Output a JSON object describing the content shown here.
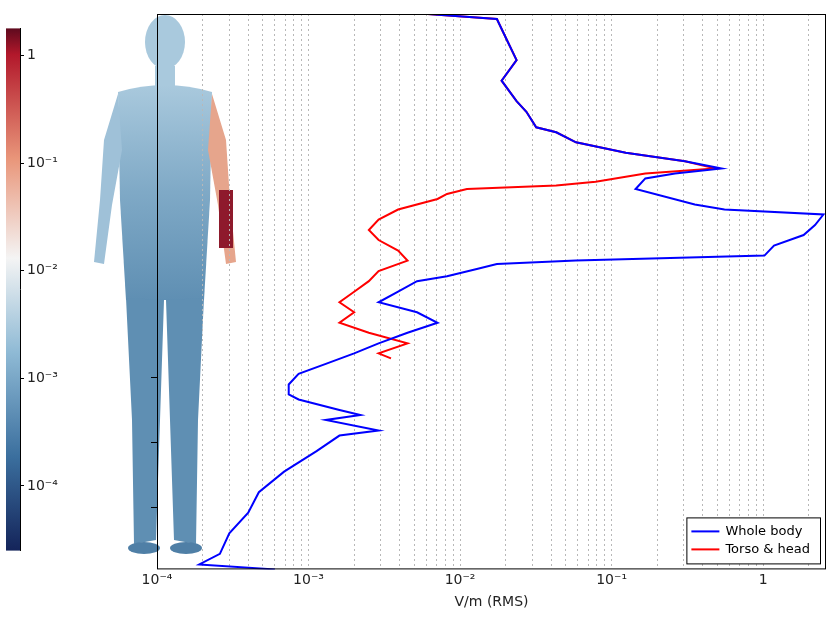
{
  "chart_data": {
    "type": "line",
    "x_label": "V/m (RMS)",
    "log": "x",
    "grid": true,
    "legend": "lower right",
    "tick_labels": "x",
    "xlim": [
      0.0001,
      2.6
    ],
    "xticks": [
      {
        "value": 0.0001,
        "label": "10⁻⁴"
      },
      {
        "value": 0.001,
        "label": "10⁻³"
      },
      {
        "value": 0.01,
        "label": "10⁻²"
      },
      {
        "value": 0.1,
        "label": "10⁻¹"
      },
      1
    ],
    "ylim": [
      0,
      1
    ],
    "yticks": [
      0.111,
      0.228,
      0.346
    ],
    "series": [
      {
        "name": "Whole body",
        "color": "#0000ff",
        "x": [
          0.0061,
          0.0175,
          0.0203,
          0.0236,
          0.0188,
          0.0236,
          0.0274,
          0.0318,
          0.0431,
          0.0582,
          0.124,
          0.305,
          0.531,
          0.262,
          0.167,
          0.144,
          0.354,
          0.556,
          2.5,
          2.2,
          1.85,
          1.18,
          1.02,
          0.0582,
          0.0175,
          0.0129,
          0.0082,
          0.0052,
          0.0039,
          0.0029,
          0.0052,
          0.0071,
          0.0045,
          0.0029,
          0.002,
          0.0013,
          0.00086,
          0.00074,
          0.00074,
          0.00086,
          0.0016,
          0.0022,
          0.0013,
          0.0029,
          0.0016,
          0.00113,
          0.00069,
          0.00047,
          0.0004,
          0.0003,
          0.00026,
          0.00019,
          0.0006
        ],
        "values": [
          1.0,
          0.991,
          0.954,
          0.917,
          0.88,
          0.843,
          0.824,
          0.796,
          0.787,
          0.769,
          0.75,
          0.735,
          0.722,
          0.713,
          0.704,
          0.685,
          0.657,
          0.648,
          0.639,
          0.62,
          0.602,
          0.583,
          0.565,
          0.556,
          0.55,
          0.541,
          0.528,
          0.519,
          0.5,
          0.481,
          0.463,
          0.444,
          0.426,
          0.407,
          0.389,
          0.37,
          0.352,
          0.333,
          0.315,
          0.306,
          0.287,
          0.278,
          0.269,
          0.25,
          0.241,
          0.213,
          0.176,
          0.139,
          0.102,
          0.065,
          0.028,
          0.009,
          0.0
        ]
      },
      {
        "name": "Torso & head",
        "color": "#ff0000",
        "x": [
          0.0061,
          0.0175,
          0.0203,
          0.0236,
          0.0188,
          0.0236,
          0.0274,
          0.0318,
          0.0431,
          0.0582,
          0.124,
          0.305,
          0.479,
          0.167,
          0.0785,
          0.0431,
          0.0111,
          0.0082,
          0.0071,
          0.0039,
          0.0029,
          0.0025,
          0.0029,
          0.0039,
          0.0045,
          0.0029,
          0.0025,
          0.002,
          0.0016,
          0.002,
          0.0016,
          0.0025,
          0.0045,
          0.0029,
          0.0035
        ],
        "values": [
          1.0,
          0.991,
          0.954,
          0.917,
          0.88,
          0.843,
          0.824,
          0.796,
          0.787,
          0.769,
          0.75,
          0.735,
          0.722,
          0.713,
          0.698,
          0.691,
          0.685,
          0.676,
          0.667,
          0.648,
          0.63,
          0.611,
          0.593,
          0.574,
          0.556,
          0.537,
          0.519,
          0.5,
          0.481,
          0.463,
          0.444,
          0.426,
          0.407,
          0.389,
          0.38
        ]
      }
    ],
    "colorbar": {
      "range": [
        2.5e-05,
        1.8
      ],
      "ticks": [
        1,
        {
          "value": 0.1,
          "label": "10⁻¹"
        },
        {
          "value": 0.01,
          "label": "10⁻²"
        },
        {
          "value": 0.001,
          "label": "10⁻³"
        },
        {
          "value": 0.0001,
          "label": "10⁻⁴"
        }
      ]
    }
  }
}
